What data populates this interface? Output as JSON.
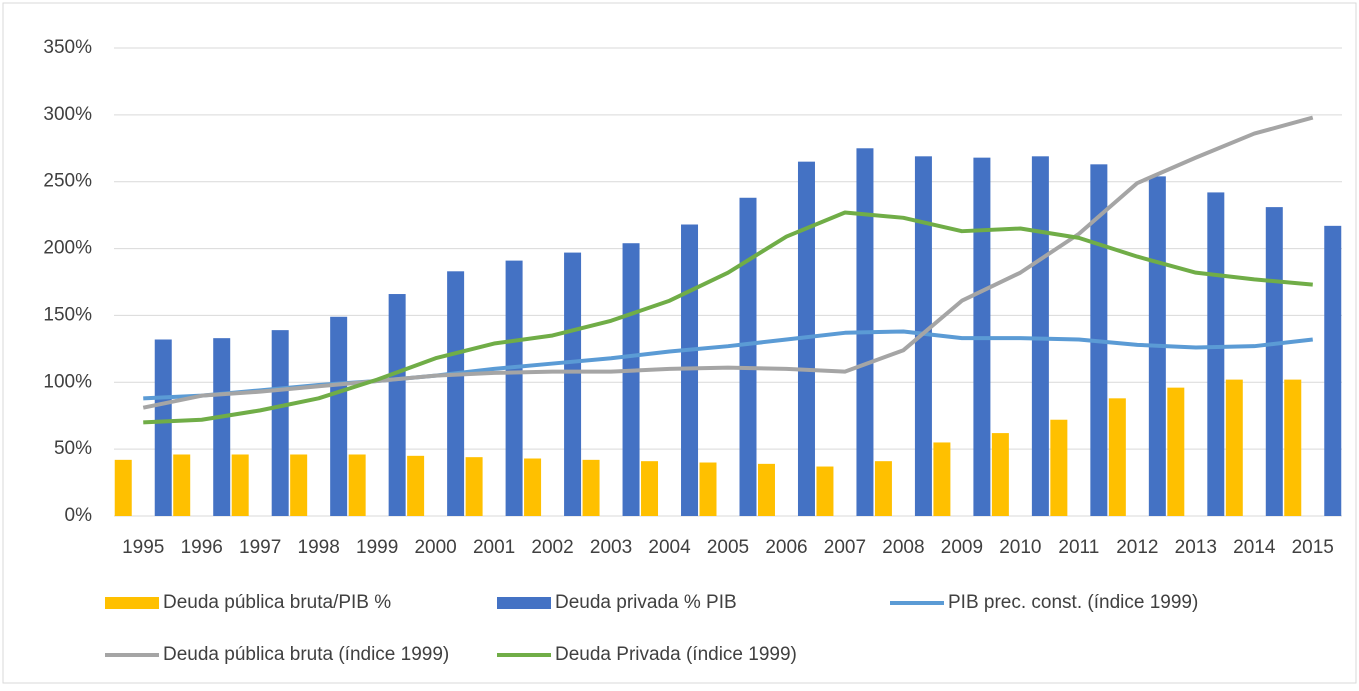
{
  "chart_data": {
    "type": "combo",
    "categories": [
      "1995",
      "1996",
      "1997",
      "1998",
      "1999",
      "2000",
      "2001",
      "2002",
      "2003",
      "2004",
      "2005",
      "2006",
      "2007",
      "2008",
      "2009",
      "2010",
      "2011",
      "2012",
      "2013",
      "2014",
      "2015"
    ],
    "ylim": [
      0,
      350
    ],
    "yticks": [
      {
        "value": 0,
        "label": "0%"
      },
      {
        "value": 50,
        "label": "50%"
      },
      {
        "value": 100,
        "label": "100%"
      },
      {
        "value": 150,
        "label": "150%"
      },
      {
        "value": 200,
        "label": "200%"
      },
      {
        "value": 250,
        "label": "250%"
      },
      {
        "value": 300,
        "label": "300%"
      },
      {
        "value": 350,
        "label": "350%"
      }
    ],
    "grid": true,
    "legend": "bottom",
    "series": [
      {
        "name": "Deuda pública bruta/PIB %",
        "type": "bar",
        "color": "#ffc000",
        "values": [
          42,
          46,
          46,
          46,
          46,
          45,
          44,
          43,
          42,
          41,
          40,
          39,
          37,
          41,
          55,
          62,
          72,
          88,
          96,
          102,
          102
        ]
      },
      {
        "name": "Deuda privada % PIB",
        "type": "bar",
        "color": "#4472c4",
        "values": [
          132,
          133,
          139,
          149,
          166,
          183,
          191,
          197,
          204,
          218,
          238,
          265,
          275,
          269,
          268,
          269,
          263,
          254,
          242,
          231,
          217
        ]
      },
      {
        "name": "PIB prec. const. (índice 1999)",
        "type": "line",
        "color": "#5b9bd5",
        "values": [
          88,
          90,
          94,
          98,
          101,
          105,
          110,
          114,
          118,
          123,
          127,
          132,
          137,
          138,
          133,
          133,
          132,
          128,
          126,
          127,
          132
        ]
      },
      {
        "name": "Deuda pública bruta (índice 1999)",
        "type": "line",
        "color": "#a5a5a5",
        "values": [
          81,
          90,
          93,
          97,
          101,
          105,
          107,
          108,
          108,
          110,
          111,
          110,
          108,
          124,
          161,
          182,
          211,
          249,
          268,
          286,
          298
        ]
      },
      {
        "name": "Deuda Privada (índice 1999)",
        "type": "line",
        "color": "#70ad47",
        "values": [
          70,
          72,
          79,
          88,
          102,
          118,
          129,
          135,
          146,
          161,
          182,
          209,
          227,
          223,
          213,
          215,
          208,
          194,
          182,
          177,
          173
        ]
      }
    ]
  }
}
